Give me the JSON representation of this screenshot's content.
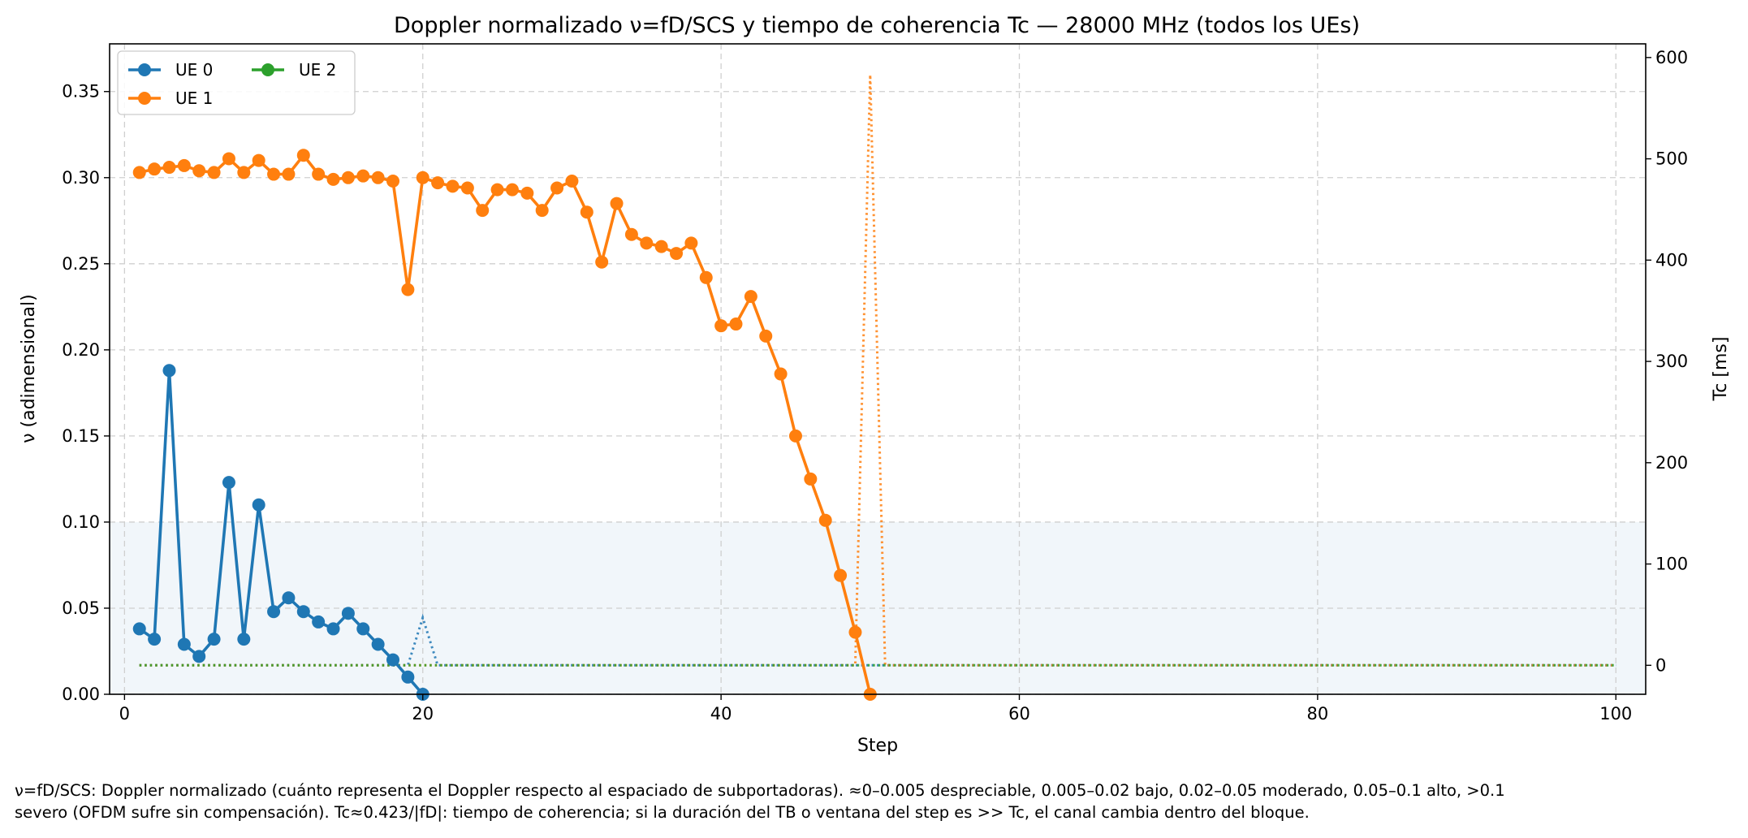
{
  "chart_data": {
    "type": "line",
    "title": "Doppler normalizado ν=fD/SCS y tiempo de coherencia Tc — 28000 MHz (todos los UEs)",
    "xlabel": "Step",
    "ylabel": "ν (adimensional)",
    "y2label": "Tc [ms]",
    "xlim": [
      -1,
      102
    ],
    "ylim": [
      0,
      0.3777
    ],
    "y2lim": [
      -28.6,
      613.5
    ],
    "xticks": [
      "0",
      "20",
      "40",
      "60",
      "80",
      "100"
    ],
    "xtick_values": [
      0,
      20,
      40,
      60,
      80,
      100
    ],
    "yticks": [
      "0.00",
      "0.05",
      "0.10",
      "0.15",
      "0.20",
      "0.25",
      "0.30",
      "0.35"
    ],
    "ytick_values": [
      0,
      0.05,
      0.1,
      0.15,
      0.2,
      0.25,
      0.3,
      0.35
    ],
    "y2ticks": [
      "0",
      "100",
      "200",
      "300",
      "400",
      "500",
      "600"
    ],
    "y2tick_values": [
      0,
      100,
      200,
      300,
      400,
      500,
      600
    ],
    "grid": true,
    "legend_position": "top-left",
    "shaded_band": {
      "axis": "y",
      "from": 0,
      "to": 0.1,
      "color": "#dbe8f3"
    },
    "colors": {
      "UE 0": "#1f77b4",
      "UE 1": "#ff7f0e",
      "UE 2": "#2ca02c"
    },
    "series": [
      {
        "name": "UE 0",
        "axis": "left",
        "x": [
          1,
          2,
          3,
          4,
          5,
          6,
          7,
          8,
          9,
          10,
          11,
          12,
          13,
          14,
          15,
          16,
          17,
          18,
          19,
          20
        ],
        "values": [
          0.038,
          0.032,
          0.188,
          0.029,
          0.022,
          0.032,
          0.123,
          0.032,
          0.11,
          0.048,
          0.056,
          0.048,
          0.042,
          0.038,
          0.047,
          0.038,
          0.029,
          0.02,
          0.01,
          0.0
        ]
      },
      {
        "name": "UE 1",
        "axis": "left",
        "x": [
          1,
          2,
          3,
          4,
          5,
          6,
          7,
          8,
          9,
          10,
          11,
          12,
          13,
          14,
          15,
          16,
          17,
          18,
          19,
          20,
          21,
          22,
          23,
          24,
          25,
          26,
          27,
          28,
          29,
          30,
          31,
          32,
          33,
          34,
          35,
          36,
          37,
          38,
          39,
          40,
          41,
          42,
          43,
          44,
          45,
          46,
          47,
          48,
          49,
          50
        ],
        "values": [
          0.303,
          0.305,
          0.306,
          0.307,
          0.304,
          0.303,
          0.311,
          0.303,
          0.31,
          0.302,
          0.302,
          0.313,
          0.302,
          0.299,
          0.3,
          0.301,
          0.3,
          0.298,
          0.235,
          0.3,
          0.297,
          0.295,
          0.294,
          0.281,
          0.293,
          0.293,
          0.291,
          0.281,
          0.294,
          0.298,
          0.28,
          0.251,
          0.285,
          0.267,
          0.262,
          0.26,
          0.256,
          0.262,
          0.242,
          0.214,
          0.215,
          0.231,
          0.208,
          0.186,
          0.15,
          0.125,
          0.101,
          0.069,
          0.036,
          0.0
        ]
      },
      {
        "name": "UE 2",
        "axis": "left",
        "x": [],
        "values": []
      },
      {
        "name": "Tc UE 0",
        "axis": "right",
        "style": "dotted",
        "x": [
          1,
          19,
          20,
          21,
          51,
          100
        ],
        "values": [
          0,
          0,
          47,
          0,
          0,
          0
        ]
      },
      {
        "name": "Tc UE 1",
        "axis": "right",
        "style": "dotted",
        "x": [
          1,
          49,
          50,
          51,
          100
        ],
        "values": [
          0,
          0,
          583,
          0,
          0
        ]
      },
      {
        "name": "Tc UE 2",
        "axis": "right",
        "style": "dotted",
        "x": [
          1,
          100
        ],
        "values": [
          0,
          0
        ]
      }
    ]
  },
  "caption": {
    "line1": "ν=fD/SCS: Doppler normalizado (cuánto representa el Doppler respecto al espaciado de subportadoras). ≈0–0.005 despreciable, 0.005–0.02 bajo, 0.02–0.05 moderado, 0.05–0.1 alto, >0.1",
    "line2": "severo (OFDM sufre sin compensación). Tc≈0.423/|fD|: tiempo de coherencia; si la duración del TB o ventana del step es >> Tc, el canal cambia dentro del bloque."
  }
}
